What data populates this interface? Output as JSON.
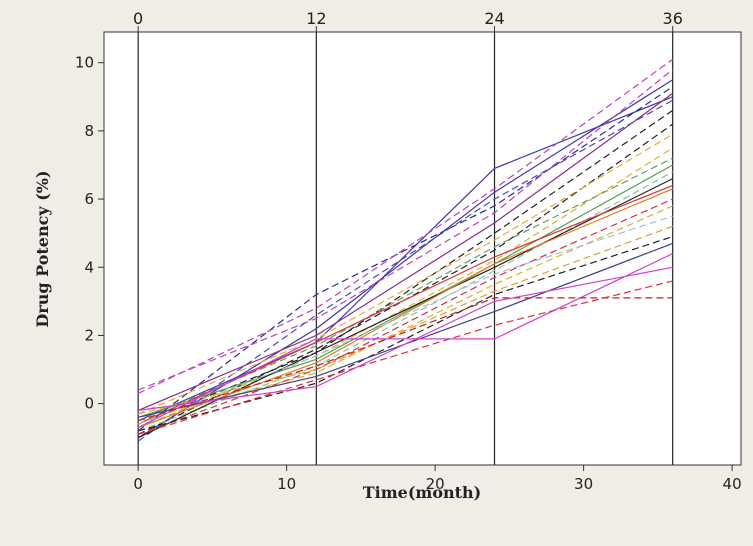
{
  "chart_data": {
    "type": "line",
    "title": "",
    "xlabel": "Time(month)",
    "ylabel": "Drug Potency (%)",
    "xlim": [
      -2.3,
      40.6
    ],
    "ylim": [
      -1.8,
      10.9
    ],
    "xticks": [
      0,
      10,
      20,
      30,
      40
    ],
    "yticks": [
      0,
      2,
      4,
      6,
      8,
      10
    ],
    "top_ticks": [
      0,
      12,
      24,
      36
    ],
    "reference_lines_x": [
      0,
      12,
      24,
      36
    ],
    "grid": false,
    "legend": "none",
    "x": [
      0,
      12,
      24,
      36
    ],
    "series": [
      {
        "values": [
          -1.0,
          2.2,
          6.2,
          9.5
        ],
        "color": "#3a3ab0",
        "dash": "solid"
      },
      {
        "values": [
          -0.5,
          1.8,
          6.9,
          9.0
        ],
        "color": "#3a3ab0",
        "dash": "solid"
      },
      {
        "values": [
          -0.8,
          3.2,
          5.8,
          9.3
        ],
        "color": "#2a2a9a",
        "dash": "dashed"
      },
      {
        "values": [
          0.3,
          2.8,
          6.3,
          10.1
        ],
        "color": "#c040c0",
        "dash": "dashed"
      },
      {
        "values": [
          0.4,
          2.5,
          5.6,
          9.8
        ],
        "color": "#c040c0",
        "dash": "dashed"
      },
      {
        "values": [
          -0.2,
          2.0,
          5.3,
          9.1
        ],
        "color": "#8a2a8a",
        "dash": "solid"
      },
      {
        "values": [
          -0.6,
          1.5,
          5.0,
          8.6
        ],
        "color": "#222222",
        "dash": "dashed"
      },
      {
        "values": [
          -1.1,
          2.6,
          6.0,
          8.9
        ],
        "color": "#4a4ac0",
        "dash": "dashed"
      },
      {
        "values": [
          -0.9,
          1.6,
          4.5,
          8.2
        ],
        "color": "#222222",
        "dash": "dashed"
      },
      {
        "values": [
          -0.3,
          1.9,
          4.8,
          7.9
        ],
        "color": "#e0b030",
        "dash": "dashed"
      },
      {
        "values": [
          -0.7,
          1.4,
          4.2,
          7.5
        ],
        "color": "#e0b030",
        "dash": "dashed"
      },
      {
        "values": [
          -0.5,
          1.7,
          4.6,
          7.2
        ],
        "color": "#60a060",
        "dash": "dashed"
      },
      {
        "values": [
          -0.4,
          1.3,
          4.1,
          7.0
        ],
        "color": "#50a050",
        "dash": "solid"
      },
      {
        "values": [
          -0.8,
          1.1,
          3.9,
          6.8
        ],
        "color": "#90c0a0",
        "dash": "dashed"
      },
      {
        "values": [
          -1.0,
          1.5,
          4.0,
          6.6
        ],
        "color": "#222222",
        "dash": "solid"
      },
      {
        "values": [
          -0.6,
          1.8,
          4.3,
          6.4
        ],
        "color": "#e03030",
        "dash": "solid"
      },
      {
        "values": [
          -0.7,
          1.2,
          4.1,
          6.3
        ],
        "color": "#e08020",
        "dash": "solid"
      },
      {
        "values": [
          -0.9,
          1.0,
          3.7,
          6.0
        ],
        "color": "#e03030",
        "dash": "dashed"
      },
      {
        "values": [
          -0.5,
          0.9,
          3.5,
          5.8
        ],
        "color": "#e0b030",
        "dash": "dashed"
      },
      {
        "values": [
          -0.6,
          1.4,
          3.8,
          5.5
        ],
        "color": "#a0c0e0",
        "dash": "dashed"
      },
      {
        "values": [
          -0.3,
          1.0,
          3.3,
          5.2
        ],
        "color": "#e0a030",
        "dash": "dashed"
      },
      {
        "values": [
          -0.8,
          0.6,
          3.2,
          4.9
        ],
        "color": "#222222",
        "dash": "dashed"
      },
      {
        "values": [
          -0.4,
          0.8,
          2.7,
          4.7
        ],
        "color": "#404090",
        "dash": "solid"
      },
      {
        "values": [
          -0.7,
          1.9,
          1.9,
          4.4
        ],
        "color": "#d040d0",
        "dash": "solid"
      },
      {
        "values": [
          -0.5,
          1.1,
          3.1,
          3.1
        ],
        "color": "#c02020",
        "dash": "dashed"
      },
      {
        "values": [
          -0.9,
          0.7,
          2.3,
          3.6
        ],
        "color": "#e03030",
        "dash": "dashed"
      },
      {
        "values": [
          -0.2,
          0.5,
          3.0,
          4.0
        ],
        "color": "#d040d0",
        "dash": "solid"
      }
    ]
  }
}
